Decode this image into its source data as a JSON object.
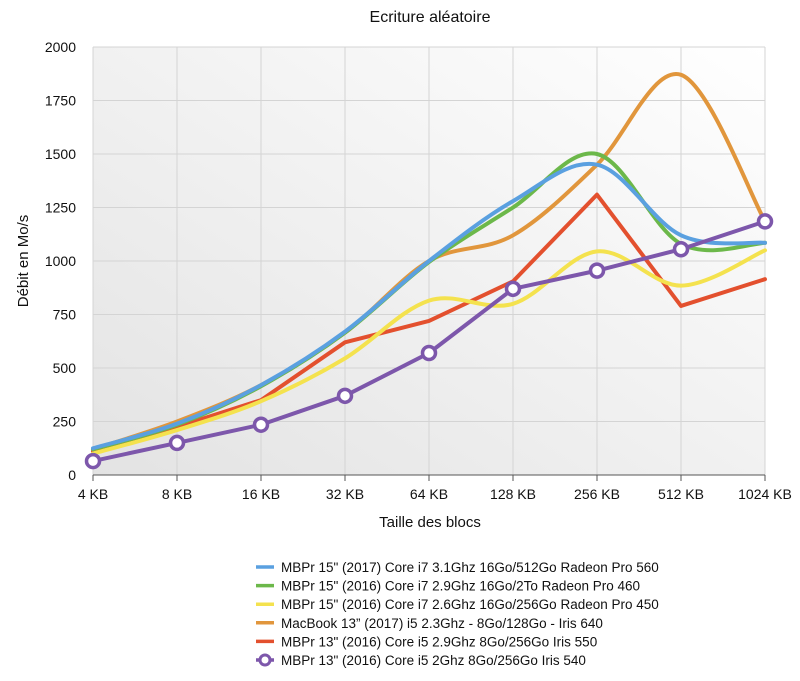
{
  "chart_data": {
    "type": "line",
    "title": "Ecriture aléatoire",
    "xlabel": "Taille des blocs",
    "ylabel": "Débit en Mo/s",
    "categories": [
      "4 KB",
      "8 KB",
      "16 KB",
      "32 KB",
      "64 KB",
      "128 KB",
      "256 KB",
      "512 KB",
      "1024 KB"
    ],
    "ylim": [
      0,
      2000
    ],
    "yticks": [
      0,
      250,
      500,
      750,
      1000,
      1250,
      1500,
      1750,
      2000
    ],
    "grid": true,
    "legend_position": "bottom",
    "series": [
      {
        "name": "MBPr 15\" (2017) Core i7 3.1Ghz 16Go/512Go Radeon Pro 560",
        "color": "#5aa0e0",
        "smooth": true,
        "markers": false,
        "values": [
          125,
          240,
          420,
          670,
          1000,
          1280,
          1450,
          1120,
          1085
        ]
      },
      {
        "name": "MBPr 15\" (2016) Core i7 2.9Ghz 16Go/2To Radeon Pro 460",
        "color": "#6cb84a",
        "smooth": true,
        "markers": false,
        "values": [
          120,
          235,
          415,
          665,
          995,
          1250,
          1500,
          1080,
          1085
        ]
      },
      {
        "name": "MBPr 15\" (2016) Core i7 2.6Ghz 16Go/256Go Radeon Pro 450",
        "color": "#f4e24e",
        "smooth": true,
        "markers": false,
        "values": [
          100,
          210,
          345,
          545,
          815,
          800,
          1045,
          885,
          1050
        ]
      },
      {
        "name": "MacBook 13” (2017) i5 2.3Ghz - 8Go/128Go - Iris 640",
        "color": "#e1963c",
        "smooth": true,
        "markers": false,
        "values": [
          120,
          250,
          420,
          665,
          1000,
          1120,
          1450,
          1870,
          1185
        ]
      },
      {
        "name": "MBPr 13\" (2016) Core i5 2.9Ghz 8Go/256Go Iris 550",
        "color": "#e3502e",
        "smooth": false,
        "markers": false,
        "values": [
          110,
          225,
          350,
          620,
          720,
          905,
          1310,
          790,
          915
        ]
      },
      {
        "name": "MBPr 13\" (2016) Core i5 2Ghz 8Go/256Go Iris 540",
        "color": "#7d57ab",
        "smooth": false,
        "markers": true,
        "values": [
          65,
          150,
          235,
          370,
          570,
          870,
          955,
          1055,
          1185
        ]
      }
    ]
  }
}
